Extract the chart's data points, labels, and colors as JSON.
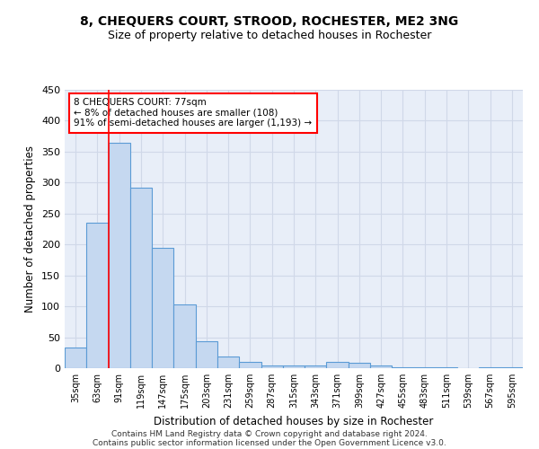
{
  "title": "8, CHEQUERS COURT, STROOD, ROCHESTER, ME2 3NG",
  "subtitle": "Size of property relative to detached houses in Rochester",
  "xlabel": "Distribution of detached houses by size in Rochester",
  "ylabel": "Number of detached properties",
  "bar_color": "#c5d8f0",
  "bar_edge_color": "#5b9bd5",
  "categories": [
    "35sqm",
    "63sqm",
    "91sqm",
    "119sqm",
    "147sqm",
    "175sqm",
    "203sqm",
    "231sqm",
    "259sqm",
    "287sqm",
    "315sqm",
    "343sqm",
    "371sqm",
    "399sqm",
    "427sqm",
    "455sqm",
    "483sqm",
    "511sqm",
    "539sqm",
    "567sqm",
    "595sqm"
  ],
  "values": [
    33,
    235,
    365,
    292,
    195,
    103,
    43,
    19,
    10,
    5,
    4,
    4,
    10,
    9,
    5,
    2,
    1,
    1,
    0,
    1,
    2
  ],
  "ylim": [
    0,
    450
  ],
  "yticks": [
    0,
    50,
    100,
    150,
    200,
    250,
    300,
    350,
    400,
    450
  ],
  "red_line_x": 1.5,
  "annotation_text": "8 CHEQUERS COURT: 77sqm\n← 8% of detached houses are smaller (108)\n91% of semi-detached houses are larger (1,193) →",
  "annotation_box_color": "white",
  "annotation_box_edge_color": "red",
  "footer_line1": "Contains HM Land Registry data © Crown copyright and database right 2024.",
  "footer_line2": "Contains public sector information licensed under the Open Government Licence v3.0.",
  "grid_color": "#d0d8e8",
  "background_color": "#e8eef8",
  "title_fontsize": 10,
  "subtitle_fontsize": 9
}
